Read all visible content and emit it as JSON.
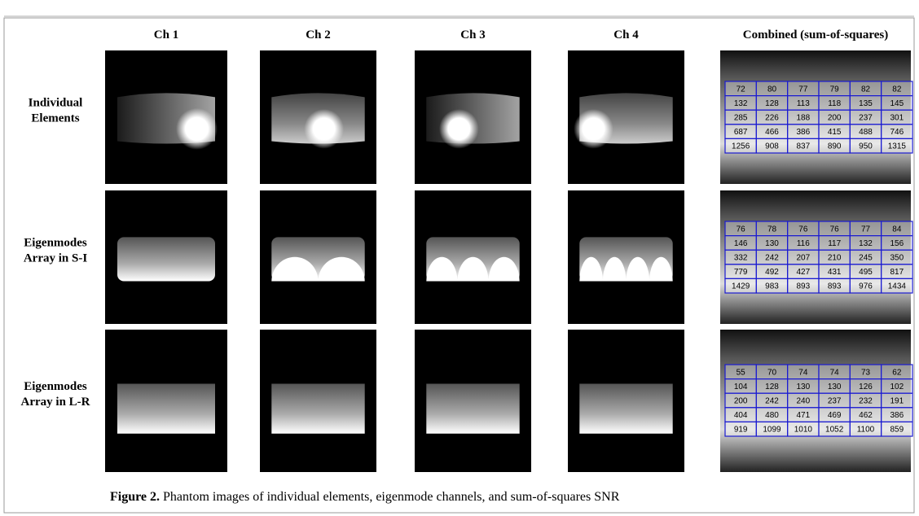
{
  "header": {
    "columns": [
      "Ch 1",
      "Ch 2",
      "Ch 3",
      "Ch 4",
      "Combined (sum-of-squares)"
    ]
  },
  "rows": [
    {
      "label": [
        "Individual",
        "Elements"
      ],
      "snr": [
        [
          72,
          80,
          77,
          79,
          82,
          82
        ],
        [
          132,
          128,
          113,
          118,
          135,
          145
        ],
        [
          285,
          226,
          188,
          200,
          237,
          301
        ],
        [
          687,
          466,
          386,
          415,
          488,
          746
        ],
        [
          1256,
          908,
          837,
          890,
          950,
          1315
        ]
      ]
    },
    {
      "label": [
        "Eigenmodes",
        "Array in S-I"
      ],
      "snr": [
        [
          76,
          78,
          76,
          76,
          77,
          84
        ],
        [
          146,
          130,
          116,
          117,
          132,
          156
        ],
        [
          332,
          242,
          207,
          210,
          245,
          350
        ],
        [
          779,
          492,
          427,
          431,
          495,
          817
        ],
        [
          1429,
          983,
          893,
          893,
          976,
          1434
        ]
      ]
    },
    {
      "label": [
        "Eigenmodes",
        "Array in L-R"
      ],
      "snr": [
        [
          55,
          70,
          74,
          74,
          73,
          62
        ],
        [
          104,
          128,
          130,
          130,
          126,
          102
        ],
        [
          200,
          242,
          240,
          237,
          232,
          191
        ],
        [
          404,
          480,
          471,
          469,
          462,
          386
        ],
        [
          919,
          1099,
          1010,
          1052,
          1100,
          859
        ]
      ]
    }
  ],
  "caption": {
    "label": "Figure 2.",
    "text": " Phantom images of individual elements, eigenmode channels, and sum-of-squares SNR"
  }
}
